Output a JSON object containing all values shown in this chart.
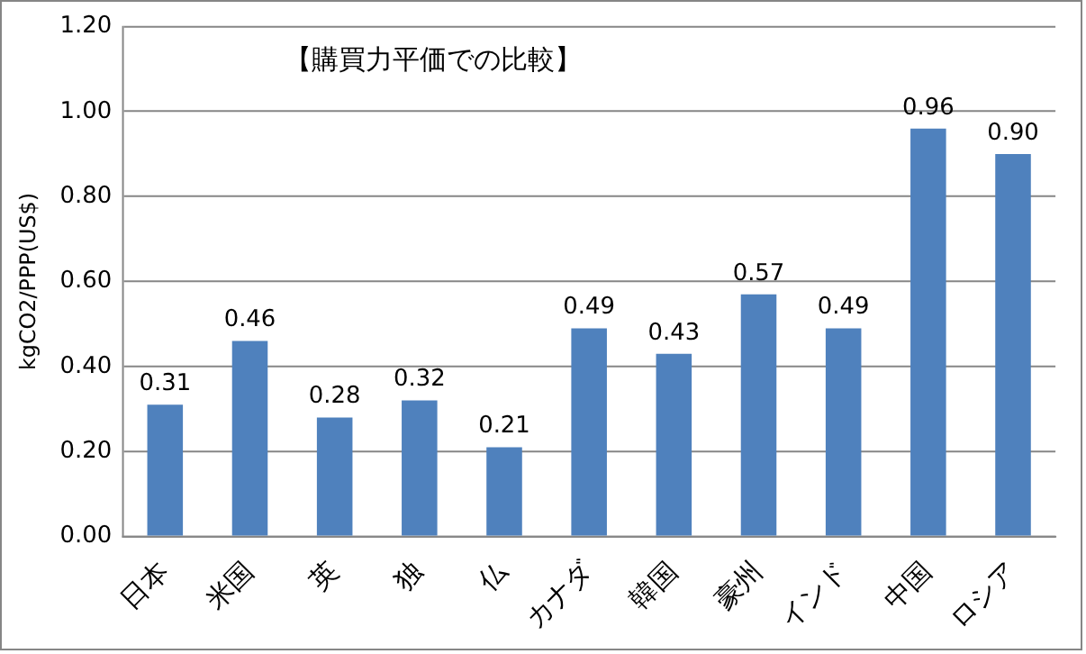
{
  "chart_data": {
    "type": "bar",
    "title": "【購買力平価での比較】",
    "ylabel": "kgCO2/PPP(US$)",
    "categories": [
      "日本",
      "米国",
      "英",
      "独",
      "仏",
      "カナダ",
      "韓国",
      "豪州",
      "インド",
      "中国",
      "ロシア"
    ],
    "values": [
      0.31,
      0.46,
      0.28,
      0.32,
      0.21,
      0.49,
      0.43,
      0.57,
      0.49,
      0.96,
      0.9
    ],
    "value_labels": [
      "0.31",
      "0.46",
      "0.28",
      "0.32",
      "0.21",
      "0.49",
      "0.43",
      "0.57",
      "0.49",
      "0.96",
      "0.90"
    ],
    "color": "#4f81bd",
    "ylim": [
      0,
      1.2
    ],
    "yticks": [
      {
        "value": 0,
        "label": "0.00"
      },
      {
        "value": 0.2,
        "label": "0.20"
      },
      {
        "value": 0.4,
        "label": "0.40"
      },
      {
        "value": 0.6,
        "label": "0.60"
      },
      {
        "value": 0.8,
        "label": "0.80"
      },
      {
        "value": 1.0,
        "label": "1.00"
      },
      {
        "value": 1.2,
        "label": "1.20"
      }
    ],
    "grid": "y",
    "legend": false
  }
}
